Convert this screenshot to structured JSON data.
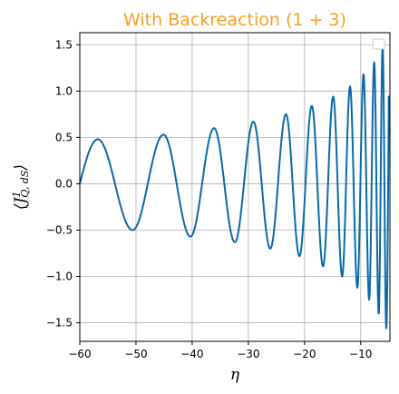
{
  "chart_data": {
    "type": "line",
    "title": "With Backreaction $(1+3)$",
    "title_display": "With Backreaction (1 + 3)",
    "title_color": "#f4a020",
    "xlabel": "η",
    "ylabel_main": "⟨J",
    "ylabel_sup": "1",
    "ylabel_sub": "Q, dS",
    "ylabel_close": "⟩",
    "xlim": [
      -60,
      -4.8
    ],
    "ylim": [
      -1.7,
      1.63
    ],
    "x_ticks": [
      -60,
      -50,
      -40,
      -30,
      -20,
      -10
    ],
    "x_tick_labels": [
      "−60",
      "−50",
      "−40",
      "−30",
      "−20",
      "−10"
    ],
    "y_ticks": [
      -1.5,
      -1.0,
      -0.5,
      0.0,
      0.5,
      1.0,
      1.5
    ],
    "y_tick_labels": [
      "−1.5",
      "−1.0",
      "−0.5",
      "0.0",
      "0.5",
      "1.0",
      "1.5"
    ],
    "grid": true,
    "legend": "upper-right (empty)",
    "series": [
      {
        "color": "#0a6aa8",
        "x_start": -60,
        "x_end": -5.0,
        "points": [
          [
            -60.0,
            0.0
          ],
          [
            -56.8,
            0.48
          ],
          [
            -50.6,
            -0.5
          ],
          [
            -45.1,
            0.53
          ],
          [
            -40.3,
            -0.57
          ],
          [
            -36.1,
            0.6
          ],
          [
            -32.4,
            -0.63
          ],
          [
            -29.1,
            0.67
          ],
          [
            -26.1,
            -0.7
          ],
          [
            -23.3,
            0.75
          ],
          [
            -20.9,
            -0.78
          ],
          [
            -18.7,
            0.84
          ],
          [
            -16.7,
            -0.89
          ],
          [
            -14.9,
            0.94
          ],
          [
            -13.3,
            -1.0
          ],
          [
            -11.9,
            1.05
          ],
          [
            -10.6,
            -1.12
          ],
          [
            -9.5,
            1.18
          ],
          [
            -8.5,
            -1.25
          ],
          [
            -7.6,
            1.31
          ],
          [
            -6.8,
            -1.4
          ],
          [
            -6.1,
            1.47
          ],
          [
            -5.45,
            -1.56
          ]
        ]
      }
    ]
  }
}
